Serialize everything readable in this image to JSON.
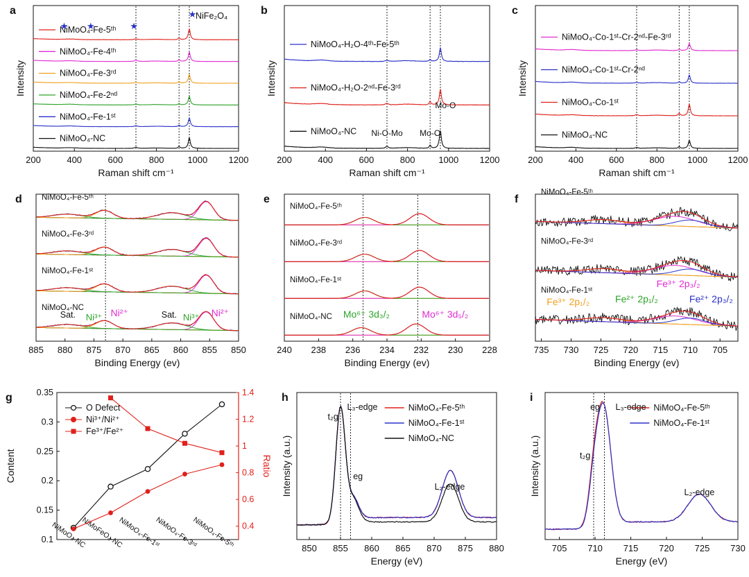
{
  "colors": {
    "black": "#111111",
    "red": "#e0201b",
    "blue": "#2a32c8",
    "magenta": "#e02bd2",
    "orange": "#f0a020",
    "green": "#2ea32a",
    "dark_red": "#b01010"
  },
  "chart_data": [
    {
      "panel": "a",
      "type": "line",
      "xlabel": "Raman shift cm⁻¹",
      "ylabel": "Intensity",
      "xlim": [
        200,
        1200
      ],
      "xticks": [
        200,
        400,
        600,
        800,
        1000,
        1200
      ],
      "vlines": [
        700,
        910,
        960
      ],
      "legend": [
        "★",
        "NiFe₂O₄"
      ],
      "marker_x": [
        350,
        480,
        690,
        975
      ],
      "series": [
        {
          "name": "NiMoO₄-Fe-5ᵗʰ",
          "color": "#e0201b",
          "peaks": [
            [
              700,
              0.5,
              8
            ],
            [
              910,
              0.9,
              5
            ],
            [
              960,
              5.5,
              6
            ]
          ]
        },
        {
          "name": "NiMoO₄-Fe-4ᵗʰ",
          "color": "#e02bd2",
          "peaks": [
            [
              700,
              0.7,
              8
            ],
            [
              910,
              1.0,
              5
            ],
            [
              960,
              4.8,
              6
            ]
          ]
        },
        {
          "name": "NiMoO₄-Fe-3ʳᵈ",
          "color": "#f0a020",
          "peaks": [
            [
              700,
              0.5,
              8
            ],
            [
              910,
              0.8,
              5
            ],
            [
              960,
              4.5,
              6
            ]
          ]
        },
        {
          "name": "NiMoO₄-Fe-2ⁿᵈ",
          "color": "#2ea32a",
          "peaks": [
            [
              700,
              0.5,
              8
            ],
            [
              910,
              0.7,
              5
            ],
            [
              960,
              4.5,
              6
            ]
          ]
        },
        {
          "name": "NiMoO₄-Fe-1ˢᵗ",
          "color": "#2a32c8",
          "peaks": [
            [
              700,
              0.5,
              8
            ],
            [
              910,
              0.7,
              5
            ],
            [
              960,
              4.5,
              6
            ]
          ]
        },
        {
          "name": "NiMoO₄-NC",
          "color": "#111111",
          "peaks": [
            [
              700,
              0.6,
              8
            ],
            [
              910,
              1.0,
              5
            ],
            [
              960,
              5.5,
              6
            ]
          ]
        }
      ]
    },
    {
      "panel": "b",
      "type": "line",
      "xlabel": "Raman shift cm⁻¹",
      "ylabel": "Intensity",
      "xlim": [
        200,
        1200
      ],
      "xticks": [
        200,
        400,
        600,
        800,
        1000,
        1200
      ],
      "vlines": [
        700,
        910,
        960
      ],
      "annotations": [
        "Ni-O-Mo",
        "Mo-O",
        "Mo-O"
      ],
      "series": [
        {
          "name": "NiMoO₄-H₂O-4ᵗʰ-Fe-5ᵗʰ",
          "color": "#2a32c8",
          "peaks": [
            [
              700,
              0.3,
              8
            ],
            [
              910,
              0.5,
              5
            ],
            [
              960,
              3.5,
              6
            ]
          ]
        },
        {
          "name": "NiMoO₄-H₂O-2ⁿᵈ-Fe-3ʳᵈ",
          "color": "#e0201b",
          "peaks": [
            [
              700,
              0.4,
              8
            ],
            [
              910,
              0.9,
              5
            ],
            [
              960,
              4.0,
              6
            ]
          ]
        },
        {
          "name": "NiMoO₄-NC",
          "color": "#111111",
          "peaks": [
            [
              700,
              0.5,
              8
            ],
            [
              910,
              0.8,
              5
            ],
            [
              960,
              4.5,
              6
            ]
          ]
        }
      ]
    },
    {
      "panel": "c",
      "type": "line",
      "xlabel": "Raman shift cm⁻¹",
      "ylabel": "Intensity",
      "xlim": [
        200,
        1200
      ],
      "xticks": [
        200,
        400,
        600,
        800,
        1000,
        1200
      ],
      "vlines": [
        700,
        910,
        960
      ],
      "series": [
        {
          "name": "NiMoO₄-Co-1ˢᵗ-Cr-2ⁿᵈ-Fe-3ʳᵈ",
          "color": "#e02bd2",
          "peaks": [
            [
              700,
              0.3,
              8
            ],
            [
              910,
              0.5,
              5
            ],
            [
              960,
              2.5,
              6
            ]
          ]
        },
        {
          "name": "NiMoO₄-Co-1ˢᵗ-Cr-2ⁿᵈ",
          "color": "#2a32c8",
          "peaks": [
            [
              700,
              0.3,
              8
            ],
            [
              910,
              0.5,
              5
            ],
            [
              960,
              2.8,
              6
            ]
          ]
        },
        {
          "name": "NiMoO₄-Co-1ˢᵗ",
          "color": "#e0201b",
          "peaks": [
            [
              700,
              0.4,
              8
            ],
            [
              910,
              0.9,
              5
            ],
            [
              960,
              4.0,
              6
            ]
          ]
        },
        {
          "name": "NiMoO₄-NC",
          "color": "#111111",
          "peaks": [
            [
              700,
              0.3,
              8
            ],
            [
              910,
              0.6,
              5
            ],
            [
              960,
              2.8,
              6
            ]
          ]
        }
      ]
    },
    {
      "panel": "d",
      "type": "line",
      "xlabel": "Binding Energy (ev)",
      "xlim": [
        885,
        850
      ],
      "xticks": [
        885,
        880,
        875,
        870,
        865,
        860,
        855,
        850
      ],
      "vlines": [
        873
      ],
      "series": [
        {
          "name": "NiMoO₄-Fe-5ᵗʰ",
          "peaks": [
            [
              855.6,
              3.0,
              1.3
            ],
            [
              861.5,
              1.1,
              2.5
            ],
            [
              873.2,
              1.3,
              1.5
            ],
            [
              879.5,
              0.6,
              2.5
            ]
          ]
        },
        {
          "name": "NiMoO₄-Fe-3ʳᵈ",
          "peaks": [
            [
              855.6,
              3.0,
              1.3
            ],
            [
              861.5,
              1.1,
              2.5
            ],
            [
              873.2,
              1.3,
              1.5
            ],
            [
              879.5,
              0.6,
              2.5
            ]
          ]
        },
        {
          "name": "NiMoO₄-Fe-1ˢᵗ",
          "peaks": [
            [
              855.6,
              3.0,
              1.3
            ],
            [
              861.5,
              1.1,
              2.5
            ],
            [
              873.2,
              1.3,
              1.5
            ],
            [
              879.5,
              0.6,
              2.5
            ]
          ]
        },
        {
          "name": "NiMoO₄-NC",
          "peaks": [
            [
              855.6,
              3.0,
              1.3
            ],
            [
              861.5,
              1.1,
              2.5
            ],
            [
              873.2,
              1.3,
              1.5
            ],
            [
              879.5,
              0.6,
              2.5
            ]
          ]
        }
      ],
      "annotations": [
        "Sat.",
        "Ni³⁺",
        "Ni²⁺",
        "Sat.",
        "Ni³⁺",
        "Ni²⁺"
      ]
    },
    {
      "panel": "e",
      "type": "line",
      "xlabel": "Binding Energy (ev)",
      "xlim": [
        240,
        228
      ],
      "xticks": [
        240,
        238,
        236,
        234,
        232,
        230,
        228
      ],
      "vlines": [
        235.4,
        232.2
      ],
      "series": [
        {
          "name": "NiMoO₄-Fe-5ᵗʰ",
          "peaks": [
            [
              235.3,
              1.0,
              0.55
            ],
            [
              232.1,
              1.5,
              0.55
            ]
          ]
        },
        {
          "name": "NiMoO₄-Fe-3ʳᵈ",
          "peaks": [
            [
              235.3,
              1.0,
              0.55
            ],
            [
              232.1,
              1.5,
              0.55
            ]
          ]
        },
        {
          "name": "NiMoO₄-Fe-1ˢᵗ",
          "peaks": [
            [
              235.3,
              1.0,
              0.55
            ],
            [
              232.1,
              1.5,
              0.55
            ]
          ]
        },
        {
          "name": "NiMoO₄-NC",
          "peaks": [
            [
              235.5,
              1.0,
              0.55
            ],
            [
              232.3,
              1.5,
              0.55
            ]
          ]
        }
      ],
      "annotations": [
        "Mo⁶⁺ 3d₃/₂",
        "Mo⁶⁺ 3d₅/₂"
      ]
    },
    {
      "panel": "f",
      "type": "line",
      "xlabel": "Binding Energy (ev)",
      "xlim": [
        736,
        702
      ],
      "xticks": [
        735,
        730,
        725,
        720,
        715,
        710,
        705
      ],
      "series": [
        {
          "name": "NiMoO₄-Fe-5ᵗʰ",
          "peaks": [
            [
              724.5,
              0.5,
              3
            ],
            [
              712.5,
              1.2,
              3.5
            ],
            [
              710.0,
              0.8,
              2.5
            ]
          ]
        },
        {
          "name": "NiMoO₄-Fe-3ʳᵈ",
          "peaks": [
            [
              724.5,
              0.5,
              3
            ],
            [
              712.5,
              1.2,
              3.5
            ],
            [
              710.0,
              0.8,
              2.5
            ]
          ]
        },
        {
          "name": "NiMoO₄-Fe-1ˢᵗ",
          "peaks": [
            [
              724.5,
              0.5,
              3
            ],
            [
              712.5,
              1.0,
              3.5
            ],
            [
              710.0,
              0.8,
              2.5
            ]
          ]
        }
      ],
      "annotations": [
        "Fe³⁺ 2p₁/₂",
        "Fe²⁺ 2p₁/₂",
        "Fe³⁺ 2p₃/₂",
        "Fe²⁺ 2p₃/₂"
      ]
    },
    {
      "panel": "g",
      "type": "line",
      "ylabel": "Content",
      "ylabel_right": "Ratio",
      "ylim": [
        0.1,
        0.35
      ],
      "yticks": [
        0.1,
        0.15,
        0.2,
        0.25,
        0.3,
        0.35
      ],
      "ylim_right": [
        0.3,
        1.4
      ],
      "yticks_right": [
        0.4,
        0.6,
        0.8,
        1.0,
        1.2,
        1.4
      ],
      "categories": [
        "NiMoO₄-NC",
        "NiMoFeO₄-NC",
        "NiMoO₄-Fe-1ˢᵗ",
        "NiMoO₄-Fe-3ʳᵈ",
        "NiMoO₄-Fe-5ᵗʰ"
      ],
      "series": [
        {
          "name": "O Defect",
          "axis": "left",
          "color": "#111111",
          "marker": "circle",
          "values": [
            0.12,
            0.19,
            0.22,
            0.28,
            0.33
          ]
        },
        {
          "name": "Ni³⁺/Ni²⁺",
          "axis": "right",
          "color": "#e0201b",
          "marker": "circle",
          "values": [
            0.38,
            0.5,
            0.66,
            0.79,
            0.86
          ]
        },
        {
          "name": "Fe³⁺/Fe²⁺",
          "axis": "right",
          "color": "#e0201b",
          "marker": "square",
          "values": [
            null,
            1.36,
            1.13,
            1.02,
            0.95
          ]
        }
      ]
    },
    {
      "panel": "h",
      "type": "line",
      "xlabel": "Energy (eV)",
      "ylabel": "Intensity (a.u.)",
      "xlim": [
        848,
        880
      ],
      "xticks": [
        850,
        855,
        860,
        865,
        870,
        875,
        880
      ],
      "vlines": [
        855,
        856.6
      ],
      "annotations": [
        "t₂g",
        "L₃-edge",
        "eg",
        "L₂-edge"
      ],
      "series": [
        {
          "name": "NiMoO₄-Fe-5ᵗʰ",
          "color": "#e0201b"
        },
        {
          "name": "NiMoO₄-Fe-1ˢᵗ",
          "color": "#2a32c8"
        },
        {
          "name": "NiMoO₄-NC",
          "color": "#111111"
        }
      ]
    },
    {
      "panel": "i",
      "type": "line",
      "xlabel": "Energy (eV)",
      "ylabel": "Intensity (a.u.)",
      "xlim": [
        703,
        730
      ],
      "xticks": [
        705,
        710,
        715,
        720,
        725,
        730
      ],
      "vlines": [
        709.8,
        711.3
      ],
      "annotations": [
        "eg",
        "L₃-edge",
        "t₂g",
        "L₂-edge"
      ],
      "series": [
        {
          "name": "NiMoO₄-Fe-5ᵗʰ",
          "color": "#e0201b"
        },
        {
          "name": "NiMoO₄-Fe-1ˢᵗ",
          "color": "#2a32c8"
        }
      ]
    }
  ]
}
